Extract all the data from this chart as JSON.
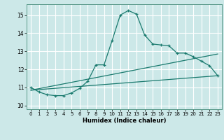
{
  "title": "",
  "xlabel": "Humidex (Indice chaleur)",
  "background_color": "#cce8e8",
  "grid_color": "#ffffff",
  "line_color": "#1a7a6e",
  "xlim": [
    -0.5,
    23.5
  ],
  "ylim": [
    9.8,
    15.6
  ],
  "yticks": [
    10,
    11,
    12,
    13,
    14,
    15
  ],
  "xticks": [
    0,
    1,
    2,
    3,
    4,
    5,
    6,
    7,
    8,
    9,
    10,
    11,
    12,
    13,
    14,
    15,
    16,
    17,
    18,
    19,
    20,
    21,
    22,
    23
  ],
  "curve1_x": [
    0,
    1,
    2,
    3,
    4,
    5,
    6,
    7,
    8,
    9,
    10,
    11,
    12,
    13,
    14,
    15,
    16,
    17,
    18,
    19,
    20,
    21,
    22,
    23
  ],
  "curve1_y": [
    11.0,
    10.75,
    10.6,
    10.55,
    10.55,
    10.7,
    10.95,
    11.35,
    12.25,
    12.25,
    13.6,
    15.0,
    15.25,
    15.05,
    13.9,
    13.4,
    13.35,
    13.3,
    12.9,
    12.9,
    12.7,
    12.45,
    12.2,
    11.65
  ],
  "curve2_x": [
    0,
    23
  ],
  "curve2_y": [
    10.85,
    11.65
  ],
  "curve3_x": [
    0,
    23
  ],
  "curve3_y": [
    10.85,
    12.85
  ]
}
